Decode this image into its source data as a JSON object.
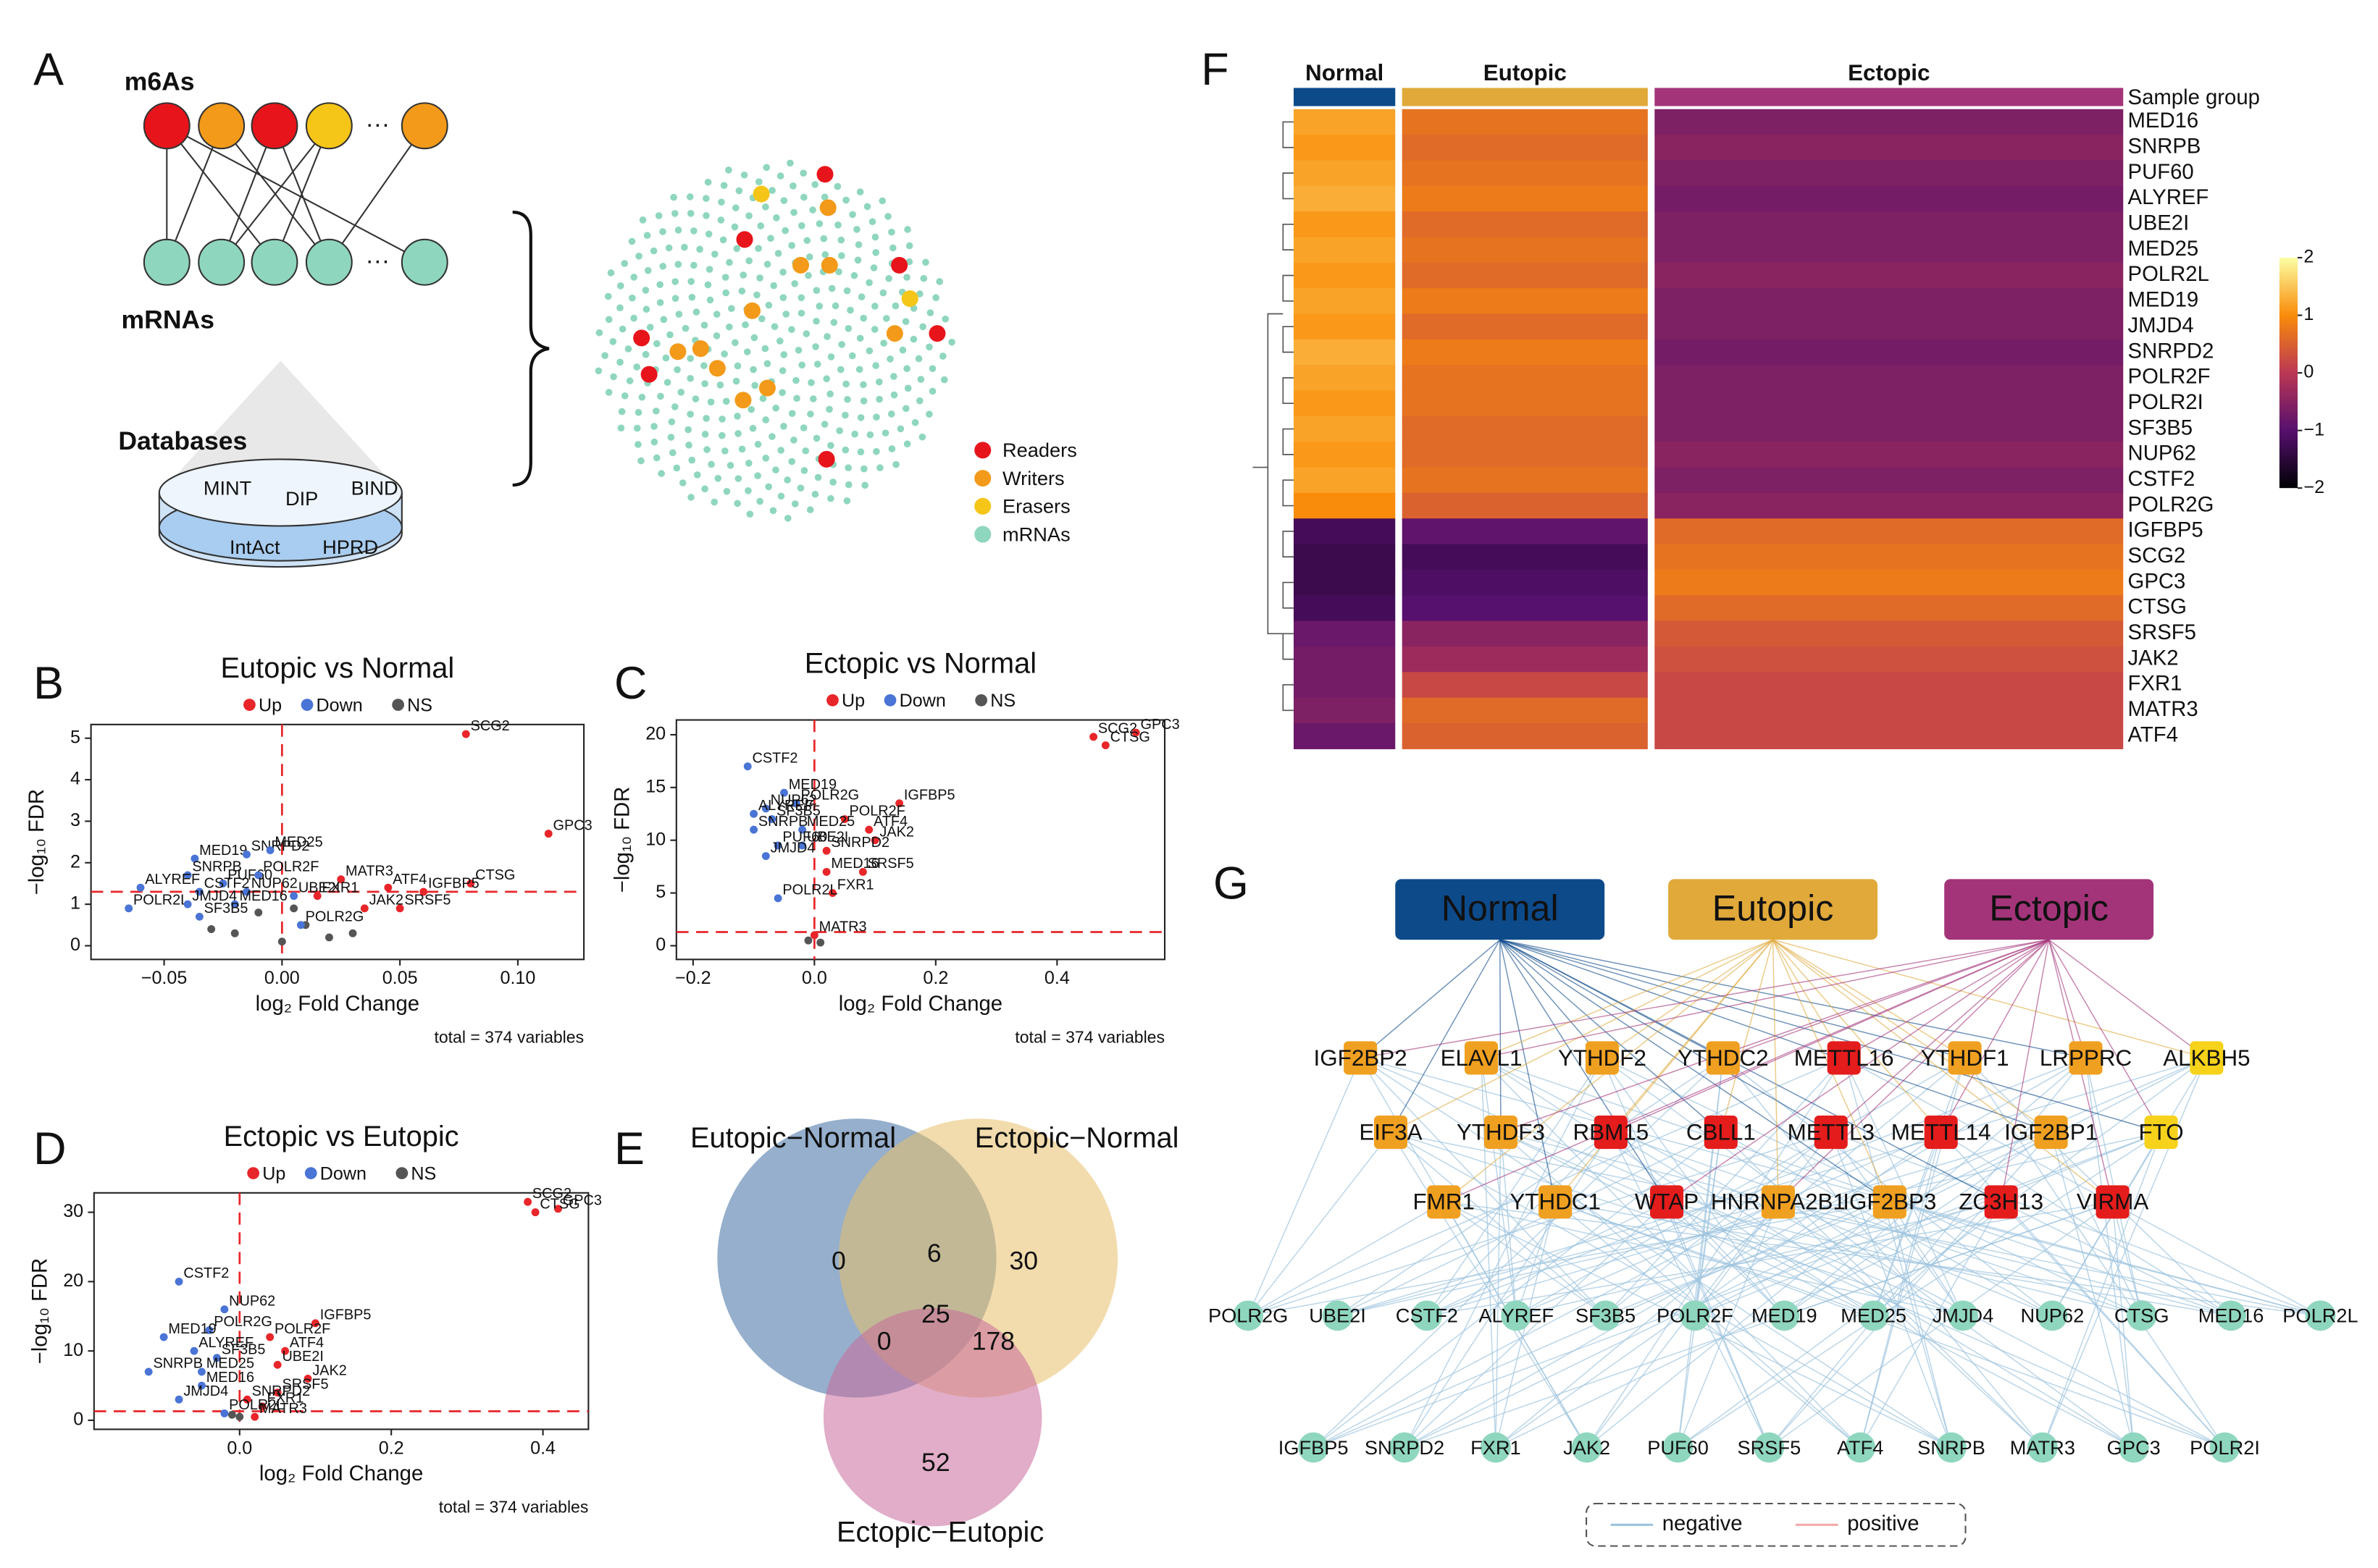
{
  "panel_labels": [
    "A",
    "B",
    "C",
    "D",
    "E",
    "F",
    "G"
  ],
  "panel_a": {
    "m6a_label": "m6As",
    "mrna_label": "mRNAs",
    "databases_label": "Databases",
    "ellipsis": "···",
    "databases": [
      "MINT",
      "DIP",
      "BIND",
      "IntAct",
      "HPRD"
    ],
    "legend": [
      {
        "name": "Readers",
        "color": "#e8141b"
      },
      {
        "name": "Writers",
        "color": "#f39a1a"
      },
      {
        "name": "Erasers",
        "color": "#f5c518"
      },
      {
        "name": "mRNAs",
        "color": "#8fd6bf"
      }
    ]
  },
  "chart_data": [
    {
      "type": "scatter",
      "title": "Eutopic vs Normal",
      "x_label": "log₂ Fold Change",
      "y_label": "−log₁₀ FDR",
      "note": "total = 374 variables",
      "xlim": [
        -0.081,
        0.128
      ],
      "ylim": [
        -0.33,
        5.33
      ],
      "xticks": [
        {
          "value": -0.05,
          "label": "−0.05"
        },
        {
          "value": 0,
          "label": "0.00"
        },
        0.05,
        {
          "value": 0.1,
          "label": "0.10"
        }
      ],
      "yticks": [
        0,
        1,
        2,
        3,
        4,
        5
      ],
      "thresholds": {
        "x": 0,
        "y": 1.3
      },
      "series": [
        {
          "name": "Up",
          "color": "#e8262a",
          "labels": [
            "SCG2",
            "GPC3",
            "CTSG",
            "IGFBP5",
            "SRSF5",
            "ATF4",
            "MATR3",
            "FXR1",
            "JAK2"
          ],
          "x": [
            0.078,
            0.113,
            0.08,
            0.06,
            0.05,
            0.045,
            0.025,
            0.015,
            0.035
          ],
          "values": [
            5.1,
            2.7,
            1.5,
            1.3,
            0.9,
            1.4,
            1.6,
            1.2,
            0.9
          ]
        },
        {
          "name": "Down",
          "color": "#4a74d6",
          "labels": [
            "MED19",
            "SNRPD2",
            "MED25",
            "SNRPB",
            "PUF60",
            "POLR2F",
            "ALYREF",
            "CSTF2",
            "NUP62",
            "UBE2I",
            "POLR2L",
            "JMJD4",
            "MED16",
            "SF3B5",
            "POLR2G"
          ],
          "x": [
            -0.037,
            -0.015,
            -0.005,
            -0.04,
            -0.025,
            -0.01,
            -0.06,
            -0.035,
            -0.015,
            0.005,
            -0.065,
            -0.04,
            -0.02,
            -0.035,
            0.008
          ],
          "values": [
            2.1,
            2.2,
            2.3,
            1.7,
            1.5,
            1.7,
            1.4,
            1.3,
            1.3,
            1.2,
            0.9,
            1.0,
            1.0,
            0.7,
            0.5
          ]
        },
        {
          "name": "NS",
          "color": "#555555",
          "x": [
            -0.02,
            0,
            0.01,
            -0.01,
            0.02,
            -0.03,
            0.005,
            0.03
          ],
          "values": [
            0.3,
            0.1,
            0.5,
            0.8,
            0.2,
            0.4,
            0.9,
            0.3
          ]
        }
      ]
    },
    {
      "type": "scatter",
      "title": "Ectopic vs Normal",
      "x_label": "log₂ Fold Change",
      "y_label": "−log₁₀ FDR",
      "note": "total = 374 variables",
      "xlim": [
        -0.2275,
        0.5775
      ],
      "ylim": [
        -1.3,
        21.4
      ],
      "xticks": [
        {
          "value": -0.2,
          "label": "−0.2"
        },
        {
          "value": 0,
          "label": "0.0"
        },
        0.2,
        0.4
      ],
      "yticks": [
        0,
        5,
        10,
        15,
        20
      ],
      "thresholds": {
        "x": 0,
        "y": 1.3
      },
      "series": [
        {
          "name": "Up",
          "color": "#e8262a",
          "labels": [
            "SCG2",
            "GPC3",
            "CTSG",
            "IGFBP5",
            "ATF4",
            "JAK2",
            "POLR2F",
            "MED16",
            "SRSF5",
            "FXR1",
            "MATR3",
            "SNRPD2"
          ],
          "x": [
            0.46,
            0.53,
            0.48,
            0.14,
            0.09,
            0.1,
            0.05,
            0.02,
            0.08,
            0.03,
            0.0,
            0.02
          ],
          "values": [
            19.8,
            20.2,
            19,
            13.5,
            11,
            10,
            12,
            7,
            7,
            5,
            1,
            9
          ]
        },
        {
          "name": "Down",
          "color": "#4a74d6",
          "labels": [
            "CSTF2",
            "MED19",
            "POLR2G",
            "NUP62",
            "ALYREF",
            "SF3B5",
            "SNRPB",
            "MED25",
            "PUF60",
            "UBE2I",
            "JMJD4",
            "POLR2L"
          ],
          "x": [
            -0.11,
            -0.05,
            -0.03,
            -0.08,
            -0.1,
            -0.07,
            -0.1,
            -0.02,
            -0.06,
            -0.02,
            -0.08,
            -0.06
          ],
          "values": [
            17,
            14.5,
            13.5,
            13,
            12.5,
            12,
            11,
            11,
            9.5,
            9.5,
            8.5,
            4.5
          ]
        },
        {
          "name": "NS",
          "color": "#555555",
          "x": [
            -0.01,
            0.01
          ],
          "values": [
            0.5,
            0.3
          ]
        }
      ]
    },
    {
      "type": "scatter",
      "title": "Ectopic vs Eutopic",
      "x_label": "log₂ Fold Change",
      "y_label": "−log₁₀ FDR",
      "note": "total = 374 variables",
      "xlim": [
        -0.192,
        0.46
      ],
      "ylim": [
        -1.3,
        32.8
      ],
      "xticks": [
        {
          "value": 0,
          "label": "0.0"
        },
        0.2,
        0.4
      ],
      "yticks": [
        0,
        10,
        20,
        30
      ],
      "thresholds": {
        "x": 0,
        "y": 1.3
      },
      "series": [
        {
          "name": "Up",
          "color": "#e8262a",
          "labels": [
            "SCG2",
            "GPC3",
            "CTSG",
            "IGFBP5",
            "POLR2F",
            "ATF4",
            "UBE2I",
            "JAK2",
            "SRSF5",
            "FXR1",
            "MATR3",
            "SNRPD2"
          ],
          "x": [
            0.38,
            0.42,
            0.39,
            0.1,
            0.04,
            0.06,
            0.05,
            0.09,
            0.05,
            0.03,
            0.02,
            0.01
          ],
          "values": [
            31.5,
            30.5,
            30,
            14,
            12,
            10,
            8,
            6,
            4,
            2,
            0.5,
            3
          ]
        },
        {
          "name": "Down",
          "color": "#4a74d6",
          "labels": [
            "CSTF2",
            "NUP62",
            "POLR2G",
            "MED19",
            "ALYREF",
            "SF3B5",
            "MED25",
            "SNRPB",
            "MED16",
            "JMJD4",
            "POLR2L"
          ],
          "x": [
            -0.08,
            -0.02,
            -0.04,
            -0.1,
            -0.06,
            -0.03,
            -0.05,
            -0.12,
            -0.05,
            -0.08,
            -0.02
          ],
          "values": [
            20,
            16,
            13,
            12,
            10,
            9,
            7,
            7,
            5,
            3,
            1
          ]
        },
        {
          "name": "NS",
          "color": "#555555",
          "x": [
            0.0,
            -0.01
          ],
          "values": [
            0.5,
            0.8
          ]
        }
      ]
    },
    {
      "type": "venn",
      "sets": [
        {
          "name": "Eutopic−Normal",
          "color": "#3e6ea3"
        },
        {
          "name": "Ectopic−Normal",
          "color": "#e8bf6a"
        },
        {
          "name": "Ectopic−Eutopic",
          "color": "#c96a9a"
        }
      ],
      "regions": [
        {
          "sets": [
            0
          ],
          "value": 0
        },
        {
          "sets": [
            1
          ],
          "value": 30
        },
        {
          "sets": [
            2
          ],
          "value": 52
        },
        {
          "sets": [
            0,
            1
          ],
          "value": 6
        },
        {
          "sets": [
            0,
            2
          ],
          "value": 0
        },
        {
          "sets": [
            1,
            2
          ],
          "value": 178
        },
        {
          "sets": [
            0,
            1,
            2
          ],
          "value": 25
        }
      ]
    },
    {
      "type": "heatmap",
      "annotation_label": "Sample group",
      "columns": [
        "Normal",
        "Eutopic",
        "Ectopic"
      ],
      "column_colors": [
        "#0d4a8a",
        "#e0a93a",
        "#a3347a"
      ],
      "rows": [
        "MED16",
        "SNRPB",
        "PUF60",
        "ALYREF",
        "UBE2I",
        "MED25",
        "POLR2L",
        "MED19",
        "JMJD4",
        "SNRPD2",
        "POLR2F",
        "POLR2I",
        "SF3B5",
        "NUP62",
        "CSTF2",
        "POLR2G",
        "IGFBP5",
        "SCG2",
        "GPC3",
        "CTSG",
        "SRSF5",
        "JAK2",
        "FXR1",
        "MATR3",
        "ATF4"
      ],
      "values": [
        [
          1.2,
          0.7,
          -0.6
        ],
        [
          1.1,
          0.6,
          -0.5
        ],
        [
          1.2,
          0.7,
          -0.6
        ],
        [
          1.3,
          0.8,
          -0.7
        ],
        [
          1.1,
          0.6,
          -0.6
        ],
        [
          1.2,
          0.7,
          -0.6
        ],
        [
          1.1,
          0.6,
          -0.5
        ],
        [
          1.2,
          0.8,
          -0.6
        ],
        [
          1.1,
          0.6,
          -0.6
        ],
        [
          1.3,
          0.8,
          -0.7
        ],
        [
          1.2,
          0.7,
          -0.6
        ],
        [
          1.1,
          0.7,
          -0.6
        ],
        [
          1.2,
          0.6,
          -0.6
        ],
        [
          1.1,
          0.6,
          -0.5
        ],
        [
          1.2,
          0.7,
          -0.6
        ],
        [
          1.0,
          0.5,
          -0.5
        ],
        [
          -1.2,
          -0.9,
          0.6
        ],
        [
          -1.3,
          -1.2,
          0.7
        ],
        [
          -1.3,
          -1.1,
          0.8
        ],
        [
          -1.2,
          -1.0,
          0.6
        ],
        [
          -0.8,
          -0.5,
          0.4
        ],
        [
          -0.7,
          -0.3,
          0.3
        ],
        [
          -0.7,
          0.2,
          0.2
        ],
        [
          -0.6,
          0.6,
          0.2
        ],
        [
          -0.8,
          0.5,
          0.2
        ]
      ],
      "colorbar_lim": [
        -2,
        2
      ],
      "colorbar_ticks": [
        2,
        1,
        0,
        {
          "value": -1,
          "label": "−1"
        },
        {
          "value": -2,
          "label": "−2"
        }
      ],
      "colors": [
        "#000004",
        "#56106e",
        "#bb3754",
        "#f98c0a",
        "#fcffa4"
      ]
    }
  ],
  "network": {
    "groups": [
      {
        "label": "Normal",
        "color": "#0d4a8a"
      },
      {
        "label": "Eutopic",
        "color": "#e0a93a"
      },
      {
        "label": "Ectopic",
        "color": "#a3347a"
      }
    ],
    "m6a_rows": [
      [
        {
          "label": "IGF2BP2",
          "color": "#f0a020"
        },
        {
          "label": "ELAVL1",
          "color": "#f0a020"
        },
        {
          "label": "YTHDF2",
          "color": "#f0a020"
        },
        {
          "label": "YTHDC2",
          "color": "#f0a020"
        },
        {
          "label": "METTL16",
          "color": "#e51c1c"
        },
        {
          "label": "YTHDF1",
          "color": "#f0a020"
        },
        {
          "label": "LRPPRC",
          "color": "#f0a020"
        },
        {
          "label": "ALKBH5",
          "color": "#f7d21a"
        }
      ],
      [
        {
          "label": "EIF3A",
          "color": "#f0a020"
        },
        {
          "label": "YTHDF3",
          "color": "#f0a020"
        },
        {
          "label": "RBM15",
          "color": "#e51c1c"
        },
        {
          "label": "CBLL1",
          "color": "#e51c1c"
        },
        {
          "label": "METTL3",
          "color": "#e51c1c"
        },
        {
          "label": "METTL14",
          "color": "#e51c1c"
        },
        {
          "label": "IGF2BP1",
          "color": "#f0a020"
        },
        {
          "label": "FTO",
          "color": "#f7d21a"
        }
      ],
      [
        {
          "label": "FMR1",
          "color": "#f0a020"
        },
        {
          "label": "YTHDC1",
          "color": "#f0a020"
        },
        {
          "label": "WTAP",
          "color": "#e51c1c"
        },
        {
          "label": "HNRNPA2B1",
          "color": "#f0a020"
        },
        {
          "label": "IGF2BP3",
          "color": "#f0a020"
        },
        {
          "label": "ZC3H13",
          "color": "#e51c1c"
        },
        {
          "label": "VIRMA",
          "color": "#e51c1c"
        }
      ]
    ],
    "mrna_rows": [
      [
        "POLR2G",
        "UBE2I",
        "CSTF2",
        "ALYREF",
        "SF3B5",
        "POLR2F",
        "MED19",
        "MED25",
        "JMJD4",
        "NUP62",
        "CTSG",
        "MED16",
        "POLR2L"
      ],
      [
        "IGFBP5",
        "SNRPD2",
        "FXR1",
        "JAK2",
        "PUF60",
        "SRSF5",
        "ATF4",
        "SNRPB",
        "MATR3",
        "GPC3",
        "POLR2I"
      ]
    ],
    "mrna_color": "#8fd6bf",
    "legend": [
      {
        "label": "negative",
        "color": "#9cc3de"
      },
      {
        "label": "positive",
        "color": "#f0aaa8"
      }
    ]
  }
}
